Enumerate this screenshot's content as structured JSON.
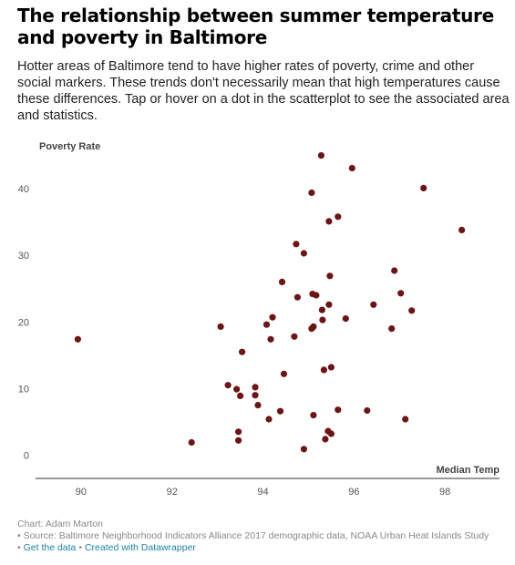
{
  "title": "The relationship between summer temperature and poverty in Baltimore",
  "subtitle": "Hotter areas of Baltimore tend to have higher rates of poverty, crime and other social markers. These trends don't necessarily mean that high temperatures cause these differences. Tap or hover on a dot in the scatterplot to see the associated area and statistics.",
  "footer": {
    "byline": "Chart: Adam Marton",
    "source": "• Source: Baltimore Neighborhood Indicators Alliance 2017 demographic data, NOAA Urban Heat Islands Study",
    "get_data": "Get the data",
    "bullet": "•",
    "created_with": "Created with Datawrapper"
  },
  "colors": {
    "dot": "#6b1516",
    "link": "#1d81a2",
    "axis": "#333333"
  },
  "chart_data": {
    "type": "scatter",
    "xlabel": "Median Temp",
    "ylabel": "Poverty Rate",
    "xlim": [
      89,
      99.2
    ],
    "ylim": [
      -3.5,
      48.5
    ],
    "xticks": [
      90,
      92,
      94,
      96,
      98
    ],
    "yticks": [
      0,
      10,
      20,
      30,
      40
    ],
    "grid": false,
    "points": [
      {
        "x": 89.93,
        "y": 17.4
      },
      {
        "x": 92.43,
        "y": 1.9
      },
      {
        "x": 93.07,
        "y": 19.3
      },
      {
        "x": 93.23,
        "y": 10.5
      },
      {
        "x": 93.42,
        "y": 9.9
      },
      {
        "x": 93.46,
        "y": 3.5
      },
      {
        "x": 93.46,
        "y": 2.2
      },
      {
        "x": 93.5,
        "y": 8.9
      },
      {
        "x": 93.54,
        "y": 15.5
      },
      {
        "x": 93.83,
        "y": 10.2
      },
      {
        "x": 93.83,
        "y": 9.0
      },
      {
        "x": 93.89,
        "y": 7.5
      },
      {
        "x": 94.08,
        "y": 19.6
      },
      {
        "x": 94.13,
        "y": 5.4
      },
      {
        "x": 94.17,
        "y": 17.4
      },
      {
        "x": 94.21,
        "y": 20.7
      },
      {
        "x": 94.38,
        "y": 6.6
      },
      {
        "x": 94.42,
        "y": 26.0
      },
      {
        "x": 94.46,
        "y": 12.2
      },
      {
        "x": 94.69,
        "y": 17.8
      },
      {
        "x": 94.73,
        "y": 31.7
      },
      {
        "x": 94.76,
        "y": 23.7
      },
      {
        "x": 94.9,
        "y": 30.3
      },
      {
        "x": 94.9,
        "y": 0.9
      },
      {
        "x": 95.07,
        "y": 19.0
      },
      {
        "x": 95.07,
        "y": 39.4
      },
      {
        "x": 95.09,
        "y": 24.2
      },
      {
        "x": 95.11,
        "y": 19.3
      },
      {
        "x": 95.11,
        "y": 6.0
      },
      {
        "x": 95.17,
        "y": 24.0
      },
      {
        "x": 95.28,
        "y": 45.0
      },
      {
        "x": 95.3,
        "y": 21.8
      },
      {
        "x": 95.31,
        "y": 20.3
      },
      {
        "x": 95.34,
        "y": 12.8
      },
      {
        "x": 95.37,
        "y": 2.4
      },
      {
        "x": 95.43,
        "y": 3.6
      },
      {
        "x": 95.45,
        "y": 35.1
      },
      {
        "x": 95.45,
        "y": 22.6
      },
      {
        "x": 95.47,
        "y": 26.9
      },
      {
        "x": 95.5,
        "y": 13.2
      },
      {
        "x": 95.5,
        "y": 3.2
      },
      {
        "x": 95.65,
        "y": 35.8
      },
      {
        "x": 95.65,
        "y": 6.8
      },
      {
        "x": 95.82,
        "y": 20.5
      },
      {
        "x": 95.96,
        "y": 43.1
      },
      {
        "x": 96.29,
        "y": 6.7
      },
      {
        "x": 96.43,
        "y": 22.6
      },
      {
        "x": 96.83,
        "y": 19.0
      },
      {
        "x": 96.89,
        "y": 27.7
      },
      {
        "x": 97.03,
        "y": 24.3
      },
      {
        "x": 97.13,
        "y": 5.4
      },
      {
        "x": 97.27,
        "y": 21.7
      },
      {
        "x": 97.53,
        "y": 40.1
      },
      {
        "x": 98.37,
        "y": 33.8
      }
    ]
  }
}
